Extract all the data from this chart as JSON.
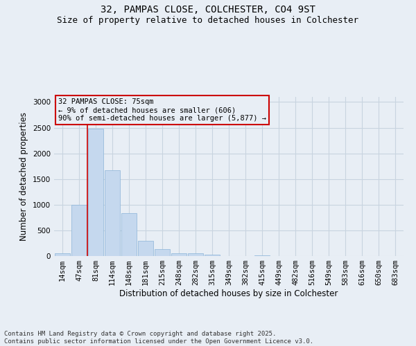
{
  "title": "32, PAMPAS CLOSE, COLCHESTER, CO4 9ST",
  "subtitle": "Size of property relative to detached houses in Colchester",
  "xlabel": "Distribution of detached houses by size in Colchester",
  "ylabel": "Number of detached properties",
  "bar_labels": [
    "14sqm",
    "47sqm",
    "81sqm",
    "114sqm",
    "148sqm",
    "181sqm",
    "215sqm",
    "248sqm",
    "282sqm",
    "315sqm",
    "349sqm",
    "382sqm",
    "415sqm",
    "449sqm",
    "482sqm",
    "516sqm",
    "549sqm",
    "583sqm",
    "616sqm",
    "650sqm",
    "683sqm"
  ],
  "bar_values": [
    50,
    1000,
    2480,
    1670,
    830,
    300,
    130,
    55,
    50,
    30,
    5,
    0,
    20,
    0,
    0,
    0,
    0,
    0,
    0,
    0,
    0
  ],
  "bar_color": "#c5d8ee",
  "bar_edgecolor": "#8ab4d8",
  "vline_color": "#cc0000",
  "vline_pos": 1.5,
  "ylim": [
    0,
    3100
  ],
  "yticks": [
    0,
    500,
    1000,
    1500,
    2000,
    2500,
    3000
  ],
  "annotation_title": "32 PAMPAS CLOSE: 75sqm",
  "annotation_line1": "← 9% of detached houses are smaller (606)",
  "annotation_line2": "90% of semi-detached houses are larger (5,877) →",
  "annotation_box_color": "#cc0000",
  "footer_line1": "Contains HM Land Registry data © Crown copyright and database right 2025.",
  "footer_line2": "Contains public sector information licensed under the Open Government Licence v3.0.",
  "bg_color": "#e8eef5",
  "grid_color": "#c8d4e0",
  "title_fontsize": 10,
  "subtitle_fontsize": 9,
  "axis_label_fontsize": 8.5,
  "tick_fontsize": 7.5,
  "annotation_fontsize": 7.5,
  "footer_fontsize": 6.5
}
